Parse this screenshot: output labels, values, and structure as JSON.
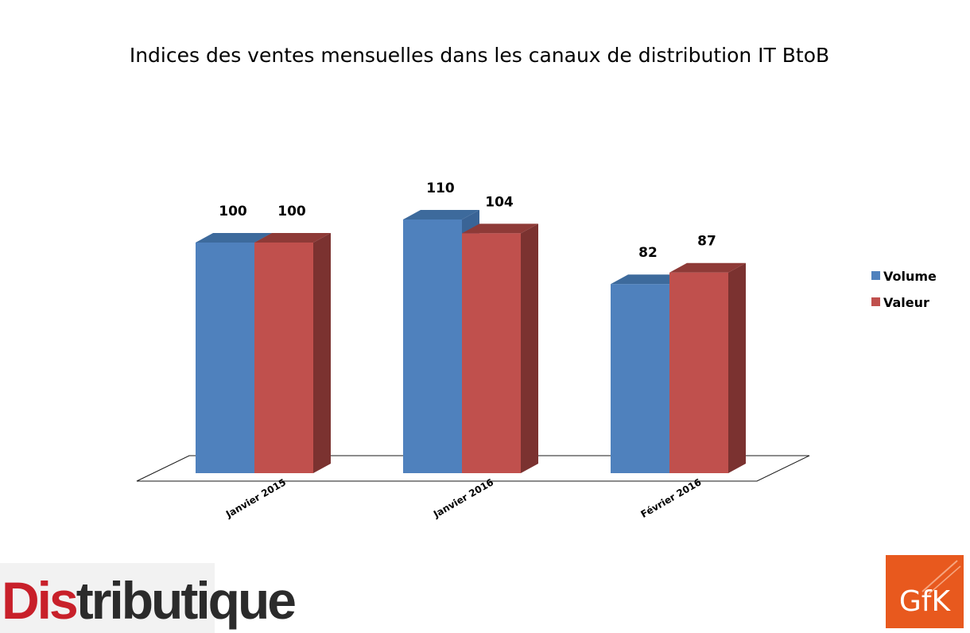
{
  "chart_data": {
    "type": "bar",
    "title": "Indices des ventes mensuelles dans les canaux de distribution IT BtoB",
    "categories": [
      "Janvier 2015",
      "Janvier 2016",
      "Février 2016"
    ],
    "series": [
      {
        "name": "Volume",
        "values": [
          100,
          110,
          82
        ],
        "color": "#4F81BD"
      },
      {
        "name": "Valeur",
        "values": [
          100,
          104,
          87
        ],
        "color": "#C0504D"
      }
    ],
    "data_labels": [
      [
        "100",
        "110",
        "82"
      ],
      [
        "100",
        "104",
        "87"
      ]
    ],
    "ylim": [
      0,
      120
    ],
    "grid": false,
    "legend_placement": "right",
    "style": "3d-clustered-column"
  },
  "logos": {
    "left": "Distributique",
    "right": "GFK",
    "left_color": "#C8202A",
    "right_color": "#E8591E"
  }
}
